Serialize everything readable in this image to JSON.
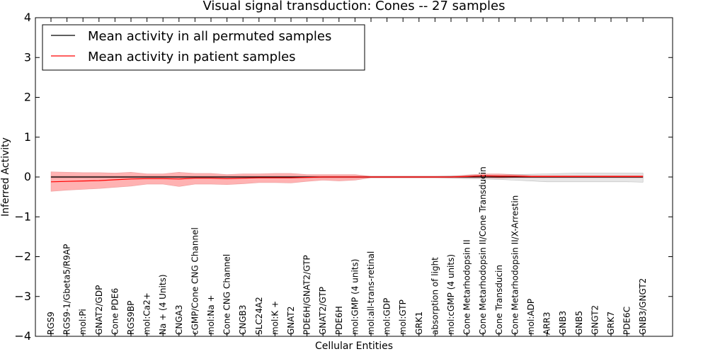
{
  "chart_data": {
    "type": "line",
    "title": "Visual signal transduction: Cones -- 27 samples",
    "xlabel": "Cellular Entities",
    "ylabel": "Inferred Activity",
    "ylim": [
      -4,
      4
    ],
    "yticks": [
      -4,
      -3,
      -2,
      -1,
      0,
      1,
      2,
      3,
      4
    ],
    "ytick_labels": [
      "−4",
      "−3",
      "−2",
      "−1",
      "0",
      "1",
      "2",
      "3",
      "4"
    ],
    "grid": false,
    "legend_position": "top-left",
    "categories": [
      "RGS9",
      "RGS9-1/Gbeta5/R9AP",
      "mol:Pi",
      "GNAT2/GDP",
      "Cone PDE6",
      "RGS9BP",
      "mol:Ca2+",
      "Na + (4 Units)",
      "CNGA3",
      "cGMP/Cone CNG Channel",
      "mol:Na +",
      "Cone CNG Channel",
      "CNGB3",
      "SLC24A2",
      "mol:K +",
      "GNAT2",
      "PDE6H/GNAT2/GTP",
      "GNAT2/GTP",
      "PDE6H",
      "mol:GMP (4 units)",
      "mol:all-trans-retinal",
      "mol:GDP",
      "mol:GTP",
      "GRK1",
      "absorption of light",
      "mol:cGMP (4 units)",
      "Cone Metarhodopsin II",
      "Cone Metarhodopsin II/Cone Transducin",
      "Cone Transducin",
      "Cone Metarhodopsin II/X-Arrestin",
      "mol:ADP",
      "ARR3",
      "GNB3",
      "GNB5",
      "GNGT2",
      "GRK7",
      "PDE6C",
      "GNB3/GNGT2"
    ],
    "series": [
      {
        "name": "Mean activity in all permuted samples",
        "color": "#000000",
        "values": [
          0,
          0,
          0,
          0,
          0,
          0,
          0,
          0,
          0,
          0,
          0,
          0,
          0,
          0,
          0,
          0,
          0,
          0,
          0,
          0,
          0,
          0,
          0,
          0,
          0,
          0,
          0,
          0,
          0,
          0,
          0,
          0,
          0,
          0,
          0,
          0,
          0,
          0
        ],
        "band_upper": [
          0.02,
          0.02,
          0.02,
          0.02,
          0.02,
          0.02,
          0.02,
          0.02,
          0.02,
          0.02,
          0.02,
          0.02,
          0.02,
          0.02,
          0.02,
          0.02,
          0.02,
          0.02,
          0.02,
          0.02,
          0.02,
          0.02,
          0.02,
          0.02,
          0.02,
          0.03,
          0.04,
          0.05,
          0.05,
          0.06,
          0.07,
          0.08,
          0.09,
          0.1,
          0.1,
          0.1,
          0.1,
          0.1
        ],
        "band_lower": [
          -0.02,
          -0.02,
          -0.02,
          -0.02,
          -0.02,
          -0.02,
          -0.02,
          -0.02,
          -0.02,
          -0.02,
          -0.02,
          -0.02,
          -0.02,
          -0.02,
          -0.02,
          -0.02,
          -0.02,
          -0.02,
          -0.02,
          -0.02,
          -0.02,
          -0.02,
          -0.02,
          -0.02,
          -0.02,
          -0.03,
          -0.04,
          -0.05,
          -0.06,
          -0.08,
          -0.1,
          -0.12,
          -0.12,
          -0.12,
          -0.12,
          -0.12,
          -0.12,
          -0.13
        ]
      },
      {
        "name": "Mean activity in patient samples",
        "color": "#ff0000",
        "values": [
          -0.12,
          -0.11,
          -0.1,
          -0.09,
          -0.07,
          -0.05,
          -0.04,
          -0.04,
          -0.05,
          -0.03,
          -0.03,
          -0.04,
          -0.03,
          -0.02,
          -0.02,
          -0.02,
          -0.01,
          0,
          0,
          0,
          0,
          0,
          0,
          0,
          0,
          0,
          0.01,
          0.03,
          0.02,
          0.02,
          0.01,
          0.01,
          0.01,
          0.01,
          0.01,
          0.01,
          0.01,
          0.01
        ],
        "band_upper": [
          0.13,
          0.12,
          0.11,
          0.11,
          0.1,
          0.12,
          0.08,
          0.08,
          0.12,
          0.09,
          0.09,
          0.06,
          0.08,
          0.08,
          0.09,
          0.09,
          0.06,
          0.06,
          0.06,
          0.06,
          0.02,
          0.02,
          0.02,
          0.02,
          0.02,
          0.02,
          0.05,
          0.08,
          0.08,
          0.06,
          0.04,
          0.04,
          0.04,
          0.04,
          0.04,
          0.04,
          0.04,
          0.04
        ],
        "band_lower": [
          -0.36,
          -0.33,
          -0.31,
          -0.29,
          -0.26,
          -0.23,
          -0.18,
          -0.18,
          -0.24,
          -0.18,
          -0.18,
          -0.19,
          -0.17,
          -0.14,
          -0.14,
          -0.15,
          -0.11,
          -0.08,
          -0.1,
          -0.08,
          -0.02,
          -0.02,
          -0.02,
          -0.02,
          -0.02,
          -0.02,
          -0.02,
          -0.02,
          -0.03,
          -0.02,
          -0.02,
          -0.02,
          -0.02,
          -0.02,
          -0.02,
          -0.02,
          -0.02,
          -0.02
        ]
      }
    ]
  }
}
